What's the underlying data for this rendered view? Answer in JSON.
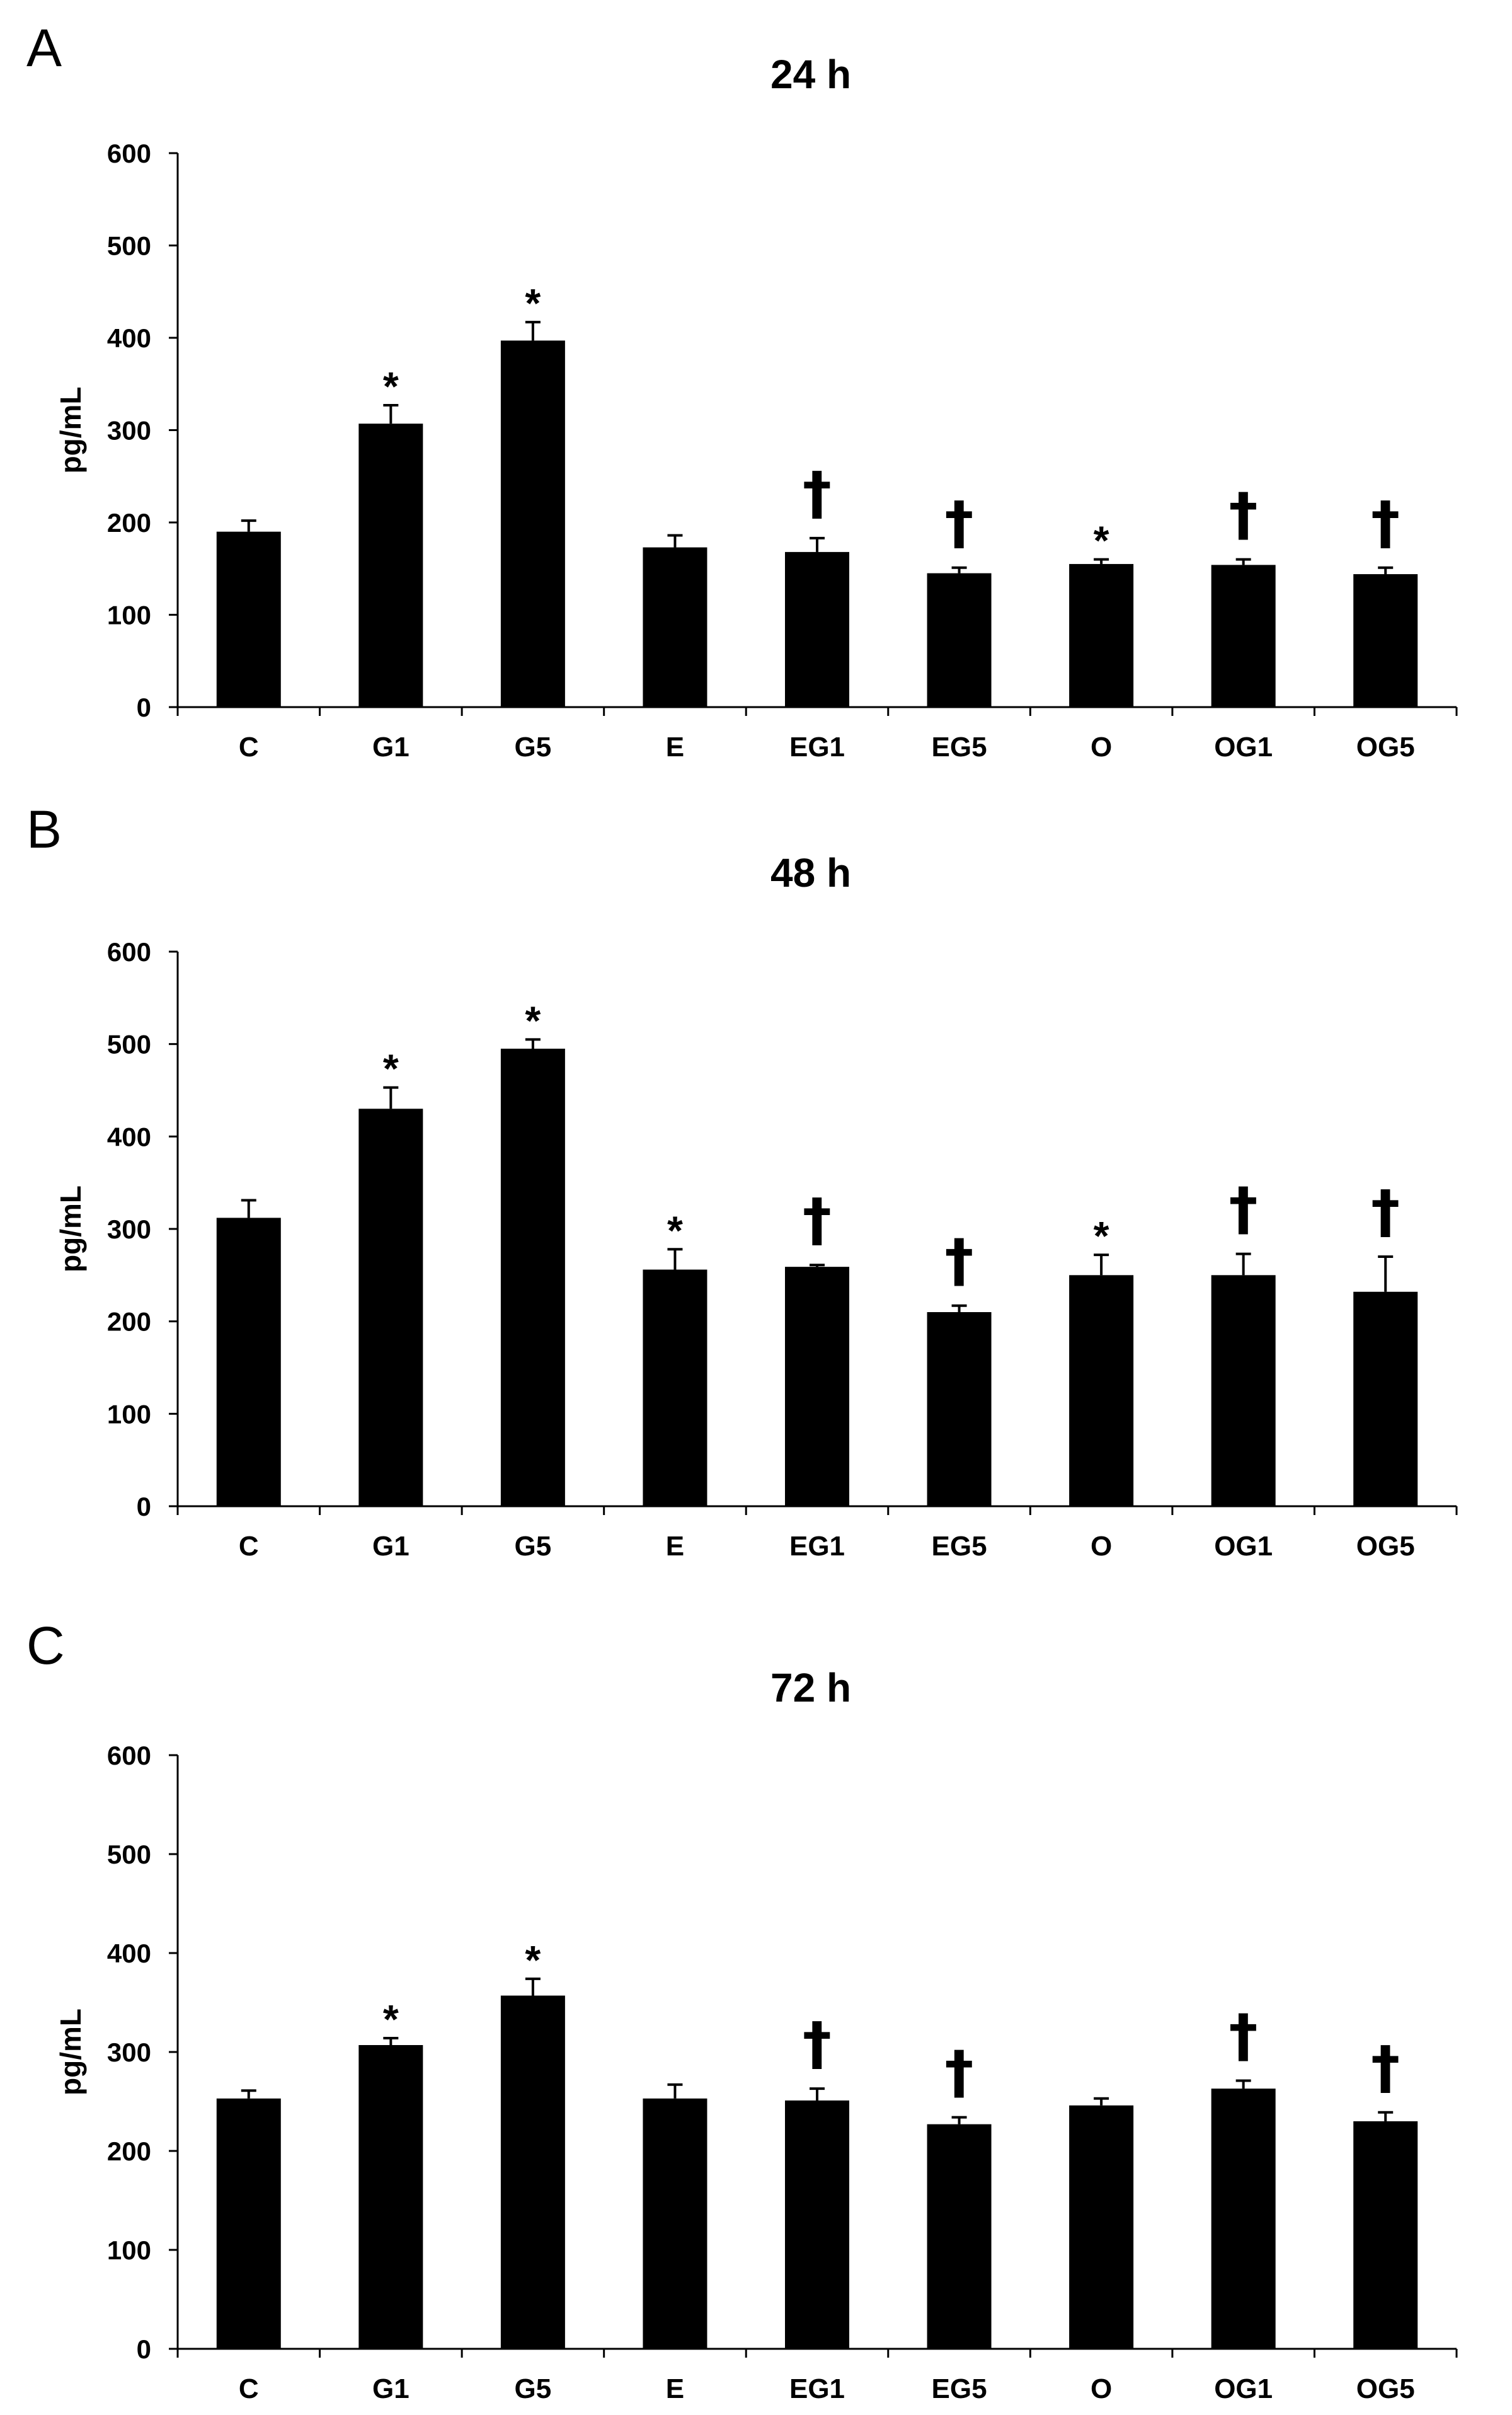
{
  "chart_data": [
    {
      "type": "bar",
      "panel": "A",
      "title": "24 h",
      "ylabel": "pg/mL",
      "xlabel": "",
      "ylim": [
        0,
        600
      ],
      "yticks": [
        0,
        100,
        200,
        300,
        400,
        500,
        600
      ],
      "categories": [
        "C",
        "G1",
        "G5",
        "E",
        "EG1",
        "EG5",
        "O",
        "OG1",
        "OG5"
      ],
      "values": [
        190,
        307,
        397,
        173,
        168,
        145,
        155,
        154,
        144
      ],
      "errors": [
        12,
        20,
        20,
        13,
        15,
        6,
        5,
        6,
        7
      ],
      "annotations": [
        "",
        "*",
        "*",
        "",
        "†",
        "†",
        "*",
        "†",
        "†"
      ]
    },
    {
      "type": "bar",
      "panel": "B",
      "title": "48 h",
      "ylabel": "pg/mL",
      "xlabel": "",
      "ylim": [
        0,
        600
      ],
      "yticks": [
        0,
        100,
        200,
        300,
        400,
        500,
        600
      ],
      "categories": [
        "C",
        "G1",
        "G5",
        "E",
        "EG1",
        "EG5",
        "O",
        "OG1",
        "OG5"
      ],
      "values": [
        312,
        430,
        495,
        256,
        259,
        210,
        250,
        250,
        232
      ],
      "errors": [
        19,
        23,
        10,
        22,
        2,
        7,
        22,
        23,
        38
      ],
      "annotations": [
        "",
        "*",
        "*",
        "*",
        "†",
        "†",
        "*",
        "†",
        "†"
      ]
    },
    {
      "type": "bar",
      "panel": "C",
      "title": "72 h",
      "ylabel": "pg/mL",
      "xlabel": "",
      "ylim": [
        0,
        600
      ],
      "yticks": [
        0,
        100,
        200,
        300,
        400,
        500,
        600
      ],
      "categories": [
        "C",
        "G1",
        "G5",
        "E",
        "EG1",
        "EG5",
        "O",
        "OG1",
        "OG5"
      ],
      "values": [
        253,
        307,
        357,
        253,
        251,
        227,
        246,
        263,
        230
      ],
      "errors": [
        8,
        7,
        17,
        14,
        12,
        7,
        7,
        8,
        9
      ],
      "annotations": [
        "",
        "*",
        "*",
        "",
        "†",
        "†",
        "",
        "†",
        "†"
      ]
    }
  ]
}
